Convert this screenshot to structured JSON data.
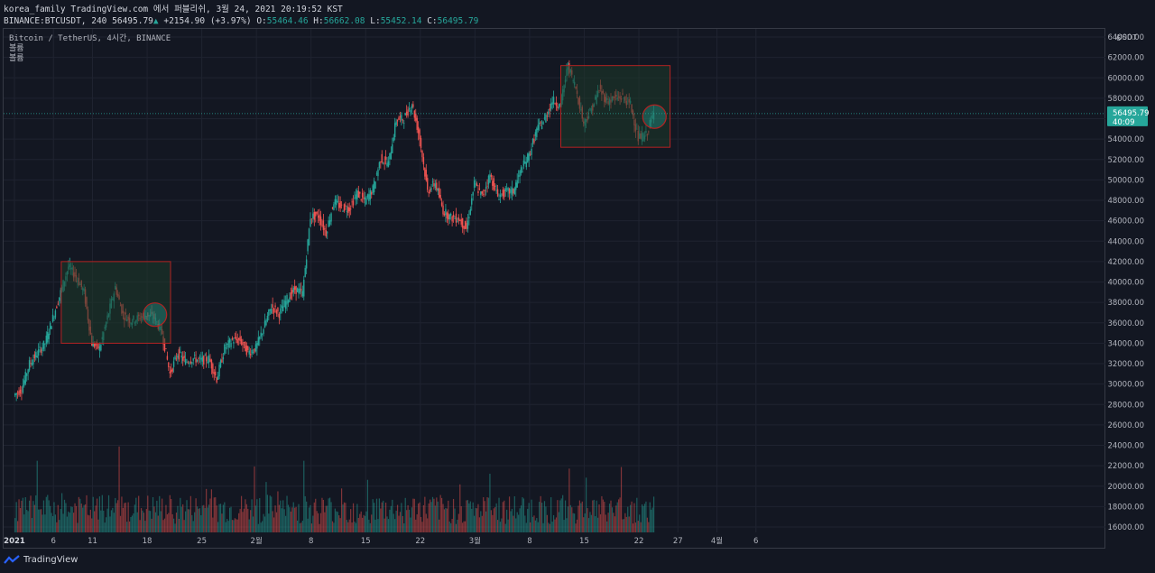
{
  "header": {
    "line1": "korea_family TradingView.com 에서 퍼블리쉬, 3월 24, 2021 20:19:52 KST",
    "symbol": "BINANCE:BTCUSDT, 240",
    "last": "56495.79",
    "arrow": "▲",
    "change": "+2154.90 (+3.97%)",
    "o_label": "O:",
    "o_val": "55464.46",
    "h_label": "H:",
    "h_val": "56662.08",
    "l_label": "L:",
    "l_val": "55452.14",
    "c_label": "C:",
    "c_val": "56495.79"
  },
  "legend": {
    "title": "Bitcoin / TetherUS, 4시간, BINANCE",
    "line2": "볼륨",
    "line3": "볼륨"
  },
  "price_tag": {
    "price": "56495.79",
    "countdown": "40:09"
  },
  "footer": {
    "brand": "TradingView"
  },
  "colors": {
    "up": "#26a69a",
    "down": "#ef5350",
    "bg": "#131722",
    "grid": "#1f2330",
    "box_fill": "#1d3a2a",
    "box_stroke": "#b22222",
    "tag": "#26a69a"
  },
  "chart_data": {
    "type": "candlestick",
    "unit": "USDT",
    "ylim": [
      15000,
      66000
    ],
    "y_ticks": [
      16000,
      18000,
      20000,
      22000,
      24000,
      26000,
      28000,
      30000,
      32000,
      34000,
      36000,
      38000,
      40000,
      42000,
      44000,
      46000,
      48000,
      50000,
      52000,
      54000,
      56000,
      58000,
      60000,
      62000,
      64000
    ],
    "y_tick_labels": [
      "16000.00",
      "18000.00",
      "20000.00",
      "22000.00",
      "24000.00",
      "26000.00",
      "28000.00",
      "30000.00",
      "32000.00",
      "34000.00",
      "36000.00",
      "38000.00",
      "40000.00",
      "42000.00",
      "44000.00",
      "46000.00",
      "48000.00",
      "50000.00",
      "52000.00",
      "54000.00",
      "56000.00",
      "58000.00",
      "60000.00",
      "62000.00",
      "64000.00"
    ],
    "x_ticks": [
      "2021",
      "6",
      "11",
      "18",
      "25",
      "2월",
      "8",
      "15",
      "22",
      "3월",
      "8",
      "15",
      "22",
      "27",
      "4월",
      "6"
    ],
    "close_path": [
      [
        "2021-01-01",
        28900
      ],
      [
        "2021-01-02",
        29500
      ],
      [
        "2021-01-03",
        32000
      ],
      [
        "2021-01-04",
        33000
      ],
      [
        "2021-01-05",
        34000
      ],
      [
        "2021-01-06",
        36500
      ],
      [
        "2021-01-07",
        39000
      ],
      [
        "2021-01-08",
        41500
      ],
      [
        "2021-01-09",
        40500
      ],
      [
        "2021-01-10",
        39000
      ],
      [
        "2021-01-11",
        34000
      ],
      [
        "2021-01-12",
        33500
      ],
      [
        "2021-01-13",
        36500
      ],
      [
        "2021-01-14",
        39500
      ],
      [
        "2021-01-15",
        36800
      ],
      [
        "2021-01-16",
        36200
      ],
      [
        "2021-01-17",
        36500
      ],
      [
        "2021-01-18",
        36800
      ],
      [
        "2021-01-19",
        36500
      ],
      [
        "2021-01-20",
        35000
      ],
      [
        "2021-01-21",
        31000
      ],
      [
        "2021-01-22",
        33000
      ],
      [
        "2021-01-23",
        32200
      ],
      [
        "2021-01-24",
        32500
      ],
      [
        "2021-01-25",
        32300
      ],
      [
        "2021-01-26",
        32500
      ],
      [
        "2021-01-27",
        30500
      ],
      [
        "2021-01-28",
        33500
      ],
      [
        "2021-01-29",
        34300
      ],
      [
        "2021-01-30",
        34300
      ],
      [
        "2021-01-31",
        33100
      ],
      [
        "2021-02-01",
        33500
      ],
      [
        "2021-02-02",
        35500
      ],
      [
        "2021-02-03",
        37600
      ],
      [
        "2021-02-04",
        36900
      ],
      [
        "2021-02-05",
        38300
      ],
      [
        "2021-02-06",
        39300
      ],
      [
        "2021-02-07",
        38900
      ],
      [
        "2021-02-08",
        46400
      ],
      [
        "2021-02-09",
        46500
      ],
      [
        "2021-02-10",
        44800
      ],
      [
        "2021-02-11",
        47900
      ],
      [
        "2021-02-12",
        47300
      ],
      [
        "2021-02-13",
        47200
      ],
      [
        "2021-02-14",
        48700
      ],
      [
        "2021-02-15",
        47900
      ],
      [
        "2021-02-16",
        49100
      ],
      [
        "2021-02-17",
        52100
      ],
      [
        "2021-02-18",
        51600
      ],
      [
        "2021-02-19",
        55900
      ],
      [
        "2021-02-20",
        56000
      ],
      [
        "2021-02-21",
        57500
      ],
      [
        "2021-02-22",
        54100
      ],
      [
        "2021-02-23",
        48900
      ],
      [
        "2021-02-24",
        49700
      ],
      [
        "2021-02-25",
        47000
      ],
      [
        "2021-02-26",
        46300
      ],
      [
        "2021-02-27",
        46200
      ],
      [
        "2021-02-28",
        45200
      ],
      [
        "2021-03-01",
        49600
      ],
      [
        "2021-03-02",
        48400
      ],
      [
        "2021-03-03",
        50500
      ],
      [
        "2021-03-04",
        48400
      ],
      [
        "2021-03-05",
        48800
      ],
      [
        "2021-03-06",
        48900
      ],
      [
        "2021-03-07",
        51000
      ],
      [
        "2021-03-08",
        52400
      ],
      [
        "2021-03-09",
        54900
      ],
      [
        "2021-03-10",
        55900
      ],
      [
        "2021-03-11",
        57800
      ],
      [
        "2021-03-12",
        57300
      ],
      [
        "2021-03-13",
        61200
      ],
      [
        "2021-03-14",
        59000
      ],
      [
        "2021-03-15",
        55600
      ],
      [
        "2021-03-16",
        56900
      ],
      [
        "2021-03-17",
        58900
      ],
      [
        "2021-03-18",
        57700
      ],
      [
        "2021-03-19",
        58000
      ],
      [
        "2021-03-20",
        58100
      ],
      [
        "2021-03-21",
        57400
      ],
      [
        "2021-03-22",
        54100
      ],
      [
        "2021-03-23",
        54400
      ],
      [
        "2021-03-24",
        56496
      ]
    ],
    "volume_scale_note": "volume bars on separate overlaid pane, unlabeled",
    "annotations": [
      {
        "type": "rectangle",
        "from": [
          "2021-01-07",
          42000
        ],
        "to": [
          "2021-01-21",
          34000
        ]
      },
      {
        "type": "circle",
        "at": [
          "2021-01-19",
          36800
        ]
      },
      {
        "type": "rectangle",
        "from": [
          "2021-03-12",
          61200
        ],
        "to": [
          "2021-03-26",
          53200
        ]
      },
      {
        "type": "circle",
        "at": [
          "2021-03-24",
          56200
        ]
      }
    ]
  }
}
